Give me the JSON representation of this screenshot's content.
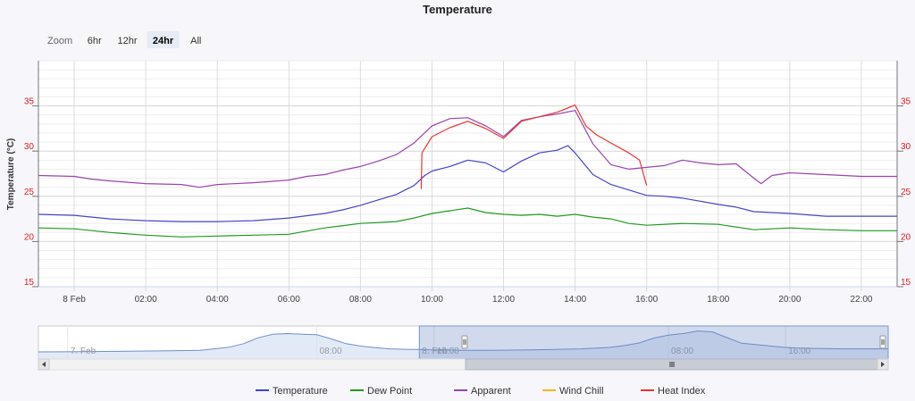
{
  "title": "Temperature",
  "zoom": {
    "label": "Zoom",
    "buttons": [
      {
        "label": "6hr",
        "selected": false
      },
      {
        "label": "12hr",
        "selected": false
      },
      {
        "label": "24hr",
        "selected": true
      },
      {
        "label": "All",
        "selected": false
      }
    ]
  },
  "chart_data": {
    "type": "line",
    "title": "Temperature",
    "ylabel": "Temperature (°C)",
    "xlabel": "",
    "ylim": [
      15,
      40
    ],
    "yticks": [
      15,
      20,
      25,
      30,
      35
    ],
    "xlim": [
      23,
      47
    ],
    "xticks": [
      {
        "x": 24,
        "label": "8 Feb"
      },
      {
        "x": 26,
        "label": "02:00"
      },
      {
        "x": 28,
        "label": "04:00"
      },
      {
        "x": 30,
        "label": "06:00"
      },
      {
        "x": 32,
        "label": "08:00"
      },
      {
        "x": 34,
        "label": "10:00"
      },
      {
        "x": 36,
        "label": "12:00"
      },
      {
        "x": 38,
        "label": "14:00"
      },
      {
        "x": 40,
        "label": "16:00"
      },
      {
        "x": 42,
        "label": "18:00"
      },
      {
        "x": 44,
        "label": "20:00"
      },
      {
        "x": 46,
        "label": "22:00"
      }
    ],
    "grid": true,
    "legend_position": "bottom-center",
    "series": [
      {
        "name": "Temperature",
        "color": "#4444cc",
        "x": [
          23,
          24,
          25,
          26,
          27,
          28,
          29,
          30,
          31,
          31.5,
          32,
          32.5,
          33,
          33.5,
          33.8,
          34,
          34.5,
          35,
          35.5,
          36,
          36.5,
          37,
          37.5,
          37.8,
          38,
          38.5,
          39,
          39.5,
          40,
          40.5,
          41,
          42,
          42.5,
          43,
          44,
          45,
          46,
          47
        ],
        "y": [
          23.0,
          22.9,
          22.5,
          22.3,
          22.2,
          22.2,
          22.3,
          22.6,
          23.1,
          23.5,
          24.0,
          24.6,
          25.2,
          26.2,
          27.3,
          27.8,
          28.3,
          29.0,
          28.7,
          27.7,
          28.9,
          29.8,
          30.1,
          30.6,
          29.8,
          27.4,
          26.3,
          25.7,
          25.1,
          25.0,
          24.8,
          24.1,
          23.8,
          23.3,
          23.1,
          22.8,
          22.8,
          22.8
        ]
      },
      {
        "name": "Dew Point",
        "color": "#229922",
        "x": [
          23,
          24,
          25,
          26,
          27,
          28,
          29,
          30,
          31,
          32,
          33,
          33.5,
          34,
          34.5,
          35,
          35.5,
          36,
          36.5,
          37,
          37.5,
          38,
          38.5,
          39,
          39.5,
          40,
          41,
          42,
          43,
          44,
          45,
          46,
          47
        ],
        "y": [
          21.5,
          21.4,
          21.0,
          20.7,
          20.5,
          20.6,
          20.7,
          20.8,
          21.5,
          22.0,
          22.2,
          22.6,
          23.1,
          23.4,
          23.7,
          23.2,
          23.0,
          22.9,
          23.0,
          22.8,
          23.0,
          22.7,
          22.5,
          22.0,
          21.8,
          22.0,
          21.9,
          21.3,
          21.5,
          21.3,
          21.2,
          21.2
        ]
      },
      {
        "name": "Apparent",
        "color": "#9944aa",
        "x": [
          23,
          24,
          24.5,
          25,
          26,
          27,
          27.5,
          28,
          29,
          30,
          30.5,
          31,
          31.5,
          32,
          32.5,
          33,
          33.5,
          34,
          34.5,
          35,
          35.5,
          36,
          36.5,
          37,
          37.5,
          38,
          38.5,
          39,
          39.5,
          40,
          40.5,
          41,
          41.5,
          42,
          42.5,
          43,
          43.2,
          43.5,
          44,
          45,
          46,
          47
        ],
        "y": [
          27.3,
          27.2,
          26.9,
          26.7,
          26.4,
          26.3,
          26.0,
          26.3,
          26.5,
          26.8,
          27.2,
          27.4,
          27.9,
          28.3,
          28.9,
          29.6,
          30.9,
          32.8,
          33.6,
          33.7,
          32.8,
          31.6,
          33.4,
          33.8,
          34.1,
          34.5,
          30.8,
          28.5,
          28.0,
          28.2,
          28.4,
          29.0,
          28.7,
          28.5,
          28.6,
          27.0,
          26.4,
          27.3,
          27.6,
          27.4,
          27.2,
          27.2
        ]
      },
      {
        "name": "Wind Chill",
        "color": "#f5b81f",
        "x": [],
        "y": []
      },
      {
        "name": "Heat Index",
        "color": "#ee3333",
        "x": [
          33.7,
          33.72,
          34,
          34.5,
          35,
          35.5,
          36,
          36.5,
          37,
          37.5,
          38,
          38.3,
          38.6,
          39,
          39.5,
          39.8,
          40.0
        ],
        "y": [
          25.8,
          29.8,
          31.6,
          32.6,
          33.3,
          32.5,
          31.4,
          33.3,
          33.8,
          34.3,
          35.1,
          32.8,
          31.8,
          30.9,
          29.8,
          29.0,
          26.2
        ]
      }
    ]
  },
  "navigator": {
    "labels": [
      {
        "x": 15,
        "label": "7. Feb"
      },
      {
        "x": 32,
        "label": "08:00"
      },
      {
        "x": 40,
        "label": "16:00"
      },
      {
        "x": 39,
        "label": "8. Feb"
      },
      {
        "x": 56,
        "label": "08:00"
      },
      {
        "x": 64,
        "label": "16:00"
      }
    ],
    "xlim": [
      13,
      71
    ],
    "selection": [
      39,
      71
    ],
    "x": [
      13,
      16,
      19,
      22,
      24,
      25,
      26,
      27,
      28,
      29,
      30,
      31,
      32,
      33,
      34,
      35,
      36,
      37,
      38,
      39,
      40,
      42,
      44,
      46,
      48,
      50,
      52,
      53,
      54,
      55,
      56,
      57,
      58,
      59,
      60,
      61,
      62,
      63,
      64,
      65,
      66,
      67,
      68,
      69,
      70,
      71
    ],
    "y": [
      21.5,
      21.6,
      21.8,
      22.0,
      22.2,
      22.8,
      23.5,
      25.0,
      27.5,
      29.0,
      29.3,
      29.0,
      28.8,
      27.0,
      25.0,
      24.0,
      23.3,
      22.8,
      22.6,
      22.5,
      22.4,
      22.2,
      22.2,
      22.3,
      22.5,
      22.8,
      23.4,
      24.2,
      25.3,
      27.4,
      28.6,
      29.3,
      30.4,
      30.0,
      27.6,
      25.2,
      24.6,
      24.0,
      23.4,
      23.1,
      23.0,
      22.9,
      22.8,
      22.8,
      22.8,
      22.8
    ]
  },
  "legend_icons": [
    "line-marker-icon"
  ]
}
